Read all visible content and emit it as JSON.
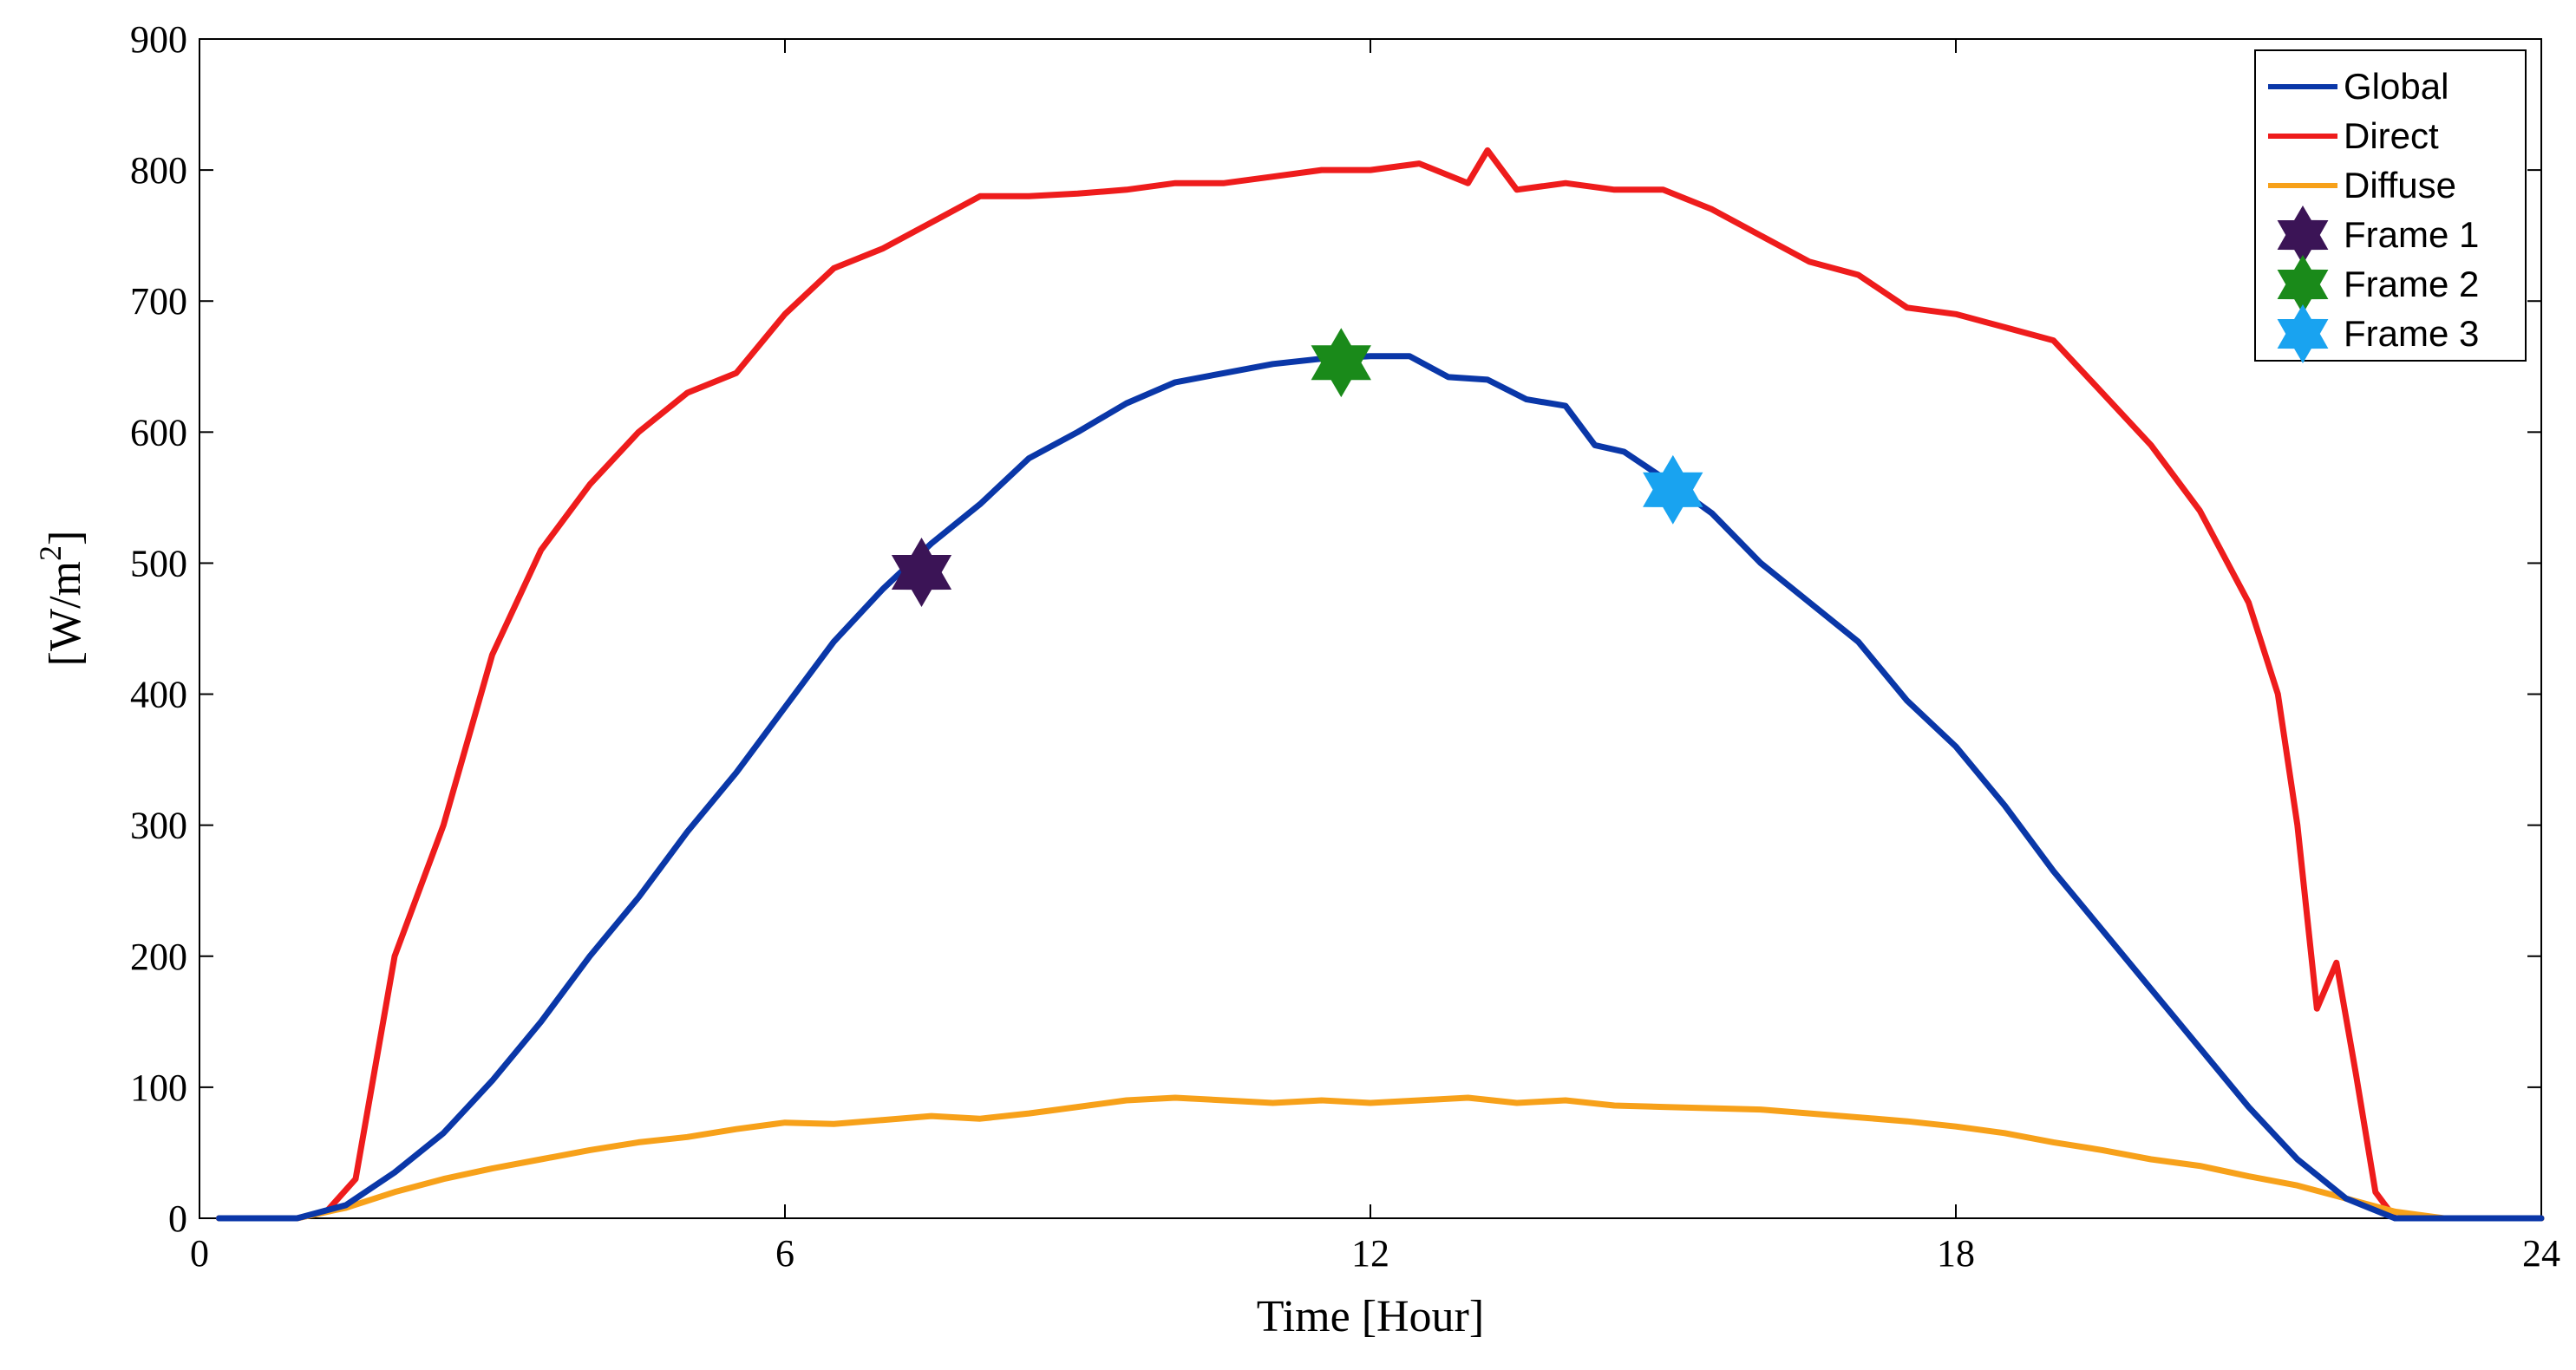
{
  "chart_data": {
    "type": "line",
    "title": "",
    "xlabel": "Time [Hour]",
    "ylabel_base": "[W/m",
    "ylabel_sup": "2",
    "ylabel_close": "]",
    "xlim": [
      0,
      24
    ],
    "ylim": [
      0,
      900
    ],
    "xticks": [
      0,
      6,
      12,
      18,
      24
    ],
    "xtick_labels": [
      "0",
      "6",
      "12",
      "18",
      "24"
    ],
    "yticks": [
      0,
      100,
      200,
      300,
      400,
      500,
      600,
      700,
      800,
      900
    ],
    "ytick_labels": [
      "0",
      "100",
      "200",
      "300",
      "400",
      "500",
      "600",
      "700",
      "800",
      "900"
    ],
    "grid": false,
    "legend_position": "top-right",
    "series": [
      {
        "name": "Global",
        "color": "#0a37a8",
        "x": [
          0.2,
          0.5,
          1.0,
          1.5,
          2.0,
          2.5,
          3.0,
          3.5,
          4.0,
          4.5,
          5.0,
          5.5,
          6.0,
          6.5,
          7.0,
          7.5,
          8.0,
          8.5,
          9.0,
          9.5,
          10.0,
          10.5,
          11.0,
          11.5,
          12.0,
          12.4,
          12.8,
          13.2,
          13.6,
          14.0,
          14.3,
          14.6,
          15.0,
          15.5,
          16.0,
          16.5,
          17.0,
          17.5,
          18.0,
          18.5,
          19.0,
          19.5,
          20.0,
          20.5,
          21.0,
          21.5,
          22.0,
          22.5,
          23.0,
          23.5,
          24.0
        ],
        "values": [
          0,
          0,
          0,
          10,
          35,
          65,
          105,
          150,
          200,
          245,
          295,
          340,
          390,
          440,
          480,
          515,
          545,
          580,
          600,
          622,
          638,
          645,
          652,
          656,
          658,
          658,
          642,
          640,
          625,
          620,
          590,
          585,
          565,
          538,
          500,
          470,
          440,
          395,
          360,
          315,
          265,
          220,
          175,
          130,
          85,
          45,
          15,
          0,
          0,
          0,
          0
        ]
      },
      {
        "name": "Direct",
        "color": "#ee1c1c",
        "x": [
          0.2,
          0.5,
          1.0,
          1.3,
          1.6,
          2.0,
          2.5,
          3.0,
          3.5,
          4.0,
          4.5,
          5.0,
          5.5,
          6.0,
          6.5,
          7.0,
          7.5,
          8.0,
          8.5,
          9.0,
          9.5,
          10.0,
          10.5,
          11.0,
          11.5,
          12.0,
          12.5,
          13.0,
          13.2,
          13.5,
          14.0,
          14.5,
          15.0,
          15.5,
          16.0,
          16.5,
          17.0,
          17.5,
          18.0,
          18.5,
          19.0,
          19.5,
          20.0,
          20.5,
          21.0,
          21.3,
          21.5,
          21.7,
          21.9,
          22.1,
          22.3,
          22.5,
          23.0,
          23.5,
          24.0
        ],
        "values": [
          0,
          0,
          0,
          5,
          30,
          200,
          300,
          430,
          510,
          560,
          600,
          630,
          645,
          690,
          725,
          740,
          760,
          780,
          780,
          782,
          785,
          790,
          790,
          795,
          800,
          800,
          805,
          790,
          815,
          785,
          790,
          785,
          785,
          770,
          750,
          730,
          720,
          695,
          690,
          680,
          670,
          630,
          590,
          540,
          470,
          400,
          300,
          160,
          195,
          110,
          20,
          0,
          0,
          0,
          0
        ]
      },
      {
        "name": "Diffuse",
        "color": "#f7a11a",
        "x": [
          0.2,
          0.5,
          1.0,
          1.5,
          2.0,
          2.5,
          3.0,
          3.5,
          4.0,
          4.5,
          5.0,
          5.5,
          6.0,
          6.5,
          7.0,
          7.5,
          8.0,
          8.5,
          9.0,
          9.5,
          10.0,
          10.5,
          11.0,
          11.5,
          12.0,
          12.5,
          13.0,
          13.5,
          14.0,
          14.5,
          15.0,
          15.5,
          16.0,
          16.5,
          17.0,
          17.5,
          18.0,
          18.5,
          19.0,
          19.5,
          20.0,
          20.5,
          21.0,
          21.5,
          22.0,
          22.5,
          23.0,
          23.5,
          24.0
        ],
        "values": [
          0,
          0,
          0,
          8,
          20,
          30,
          38,
          45,
          52,
          58,
          62,
          68,
          73,
          72,
          75,
          78,
          76,
          80,
          85,
          90,
          92,
          90,
          88,
          90,
          88,
          90,
          92,
          88,
          90,
          86,
          85,
          84,
          83,
          80,
          77,
          74,
          70,
          65,
          58,
          52,
          45,
          40,
          32,
          25,
          15,
          5,
          0,
          0,
          0
        ]
      }
    ],
    "markers": [
      {
        "name": "Frame 1",
        "x": 7.4,
        "y": 493,
        "color": "#3b1456"
      },
      {
        "name": "Frame 2",
        "x": 11.7,
        "y": 653,
        "color": "#1a8a1a"
      },
      {
        "name": "Frame 3",
        "x": 15.1,
        "y": 556,
        "color": "#19a3f0"
      }
    ]
  }
}
